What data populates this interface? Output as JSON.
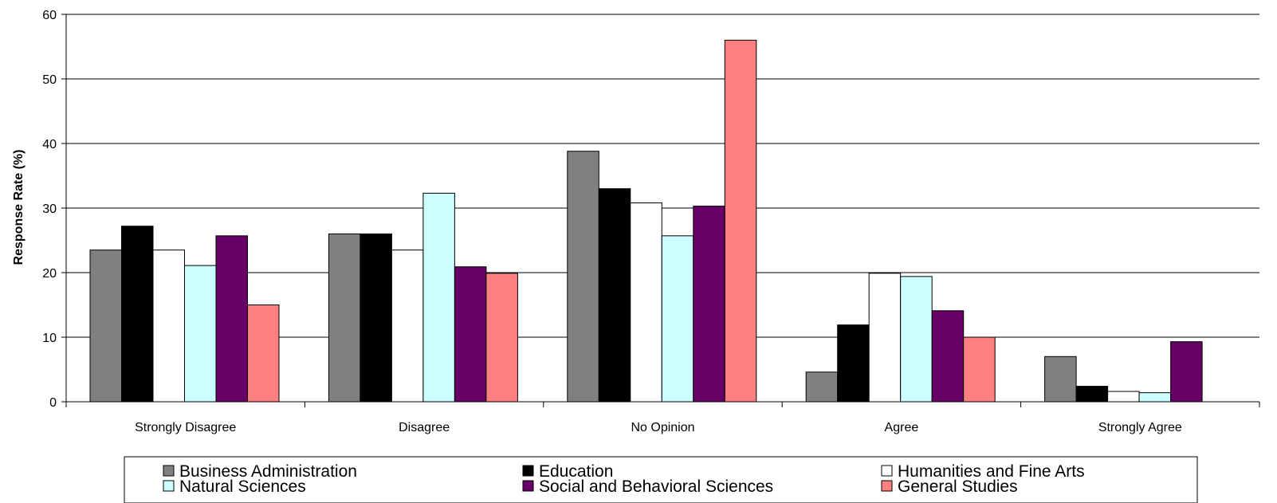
{
  "chart_data": {
    "type": "bar",
    "title": "",
    "xlabel": "",
    "ylabel": "Response Rate (%)",
    "ylim": [
      0,
      60
    ],
    "yticks": [
      0,
      10,
      20,
      30,
      40,
      50,
      60
    ],
    "grid": true,
    "legend_position": "bottom",
    "categories": [
      "Strongly Disagree",
      "Disagree",
      "No Opinion",
      "Agree",
      "Strongly Agree"
    ],
    "series": [
      {
        "name": "Business Administration",
        "color": "#808080",
        "values": [
          23.5,
          26,
          38.8,
          4.6,
          7.0
        ]
      },
      {
        "name": "Education",
        "color": "#000000",
        "values": [
          27.2,
          26,
          33.0,
          11.9,
          2.4
        ]
      },
      {
        "name": "Humanities and Fine Arts",
        "color": "#ffffff",
        "values": [
          23.5,
          23.5,
          30.8,
          19.9,
          1.6
        ]
      },
      {
        "name": "Natural Sciences",
        "color": "#ccffff",
        "values": [
          21.1,
          32.3,
          25.7,
          19.4,
          1.4
        ]
      },
      {
        "name": "Social and Behavioral Sciences",
        "color": "#660066",
        "values": [
          25.7,
          20.9,
          30.3,
          14.1,
          9.3
        ]
      },
      {
        "name": "General Studies",
        "color": "#ff8080",
        "values": [
          15.0,
          19.9,
          56.0,
          10.0,
          0
        ]
      }
    ]
  }
}
